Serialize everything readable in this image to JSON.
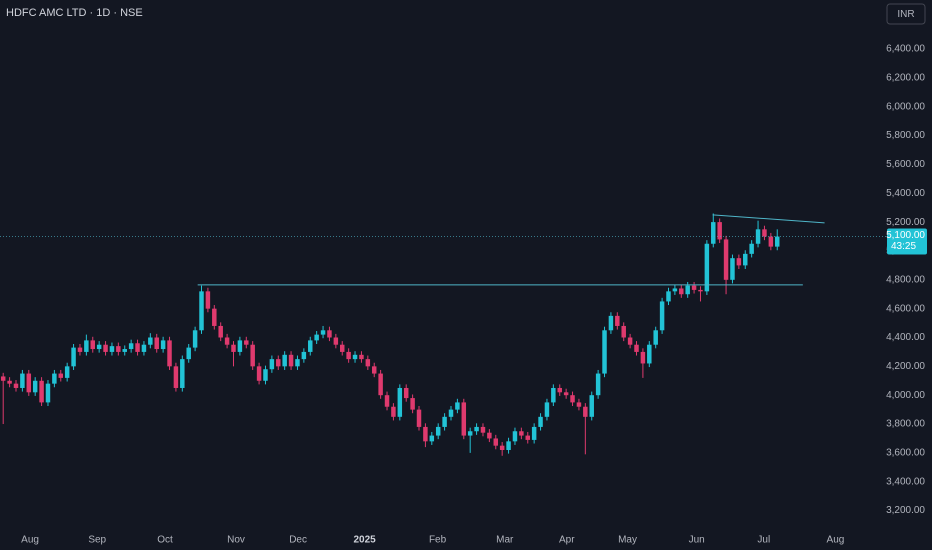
{
  "chart_data": {
    "type": "candlestick",
    "title": "HDFC AMC LTD · 1D · NSE",
    "currency": "INR",
    "up_color": "#22c3d6",
    "down_color": "#df3a6e",
    "line_color": "#4fb6c9",
    "grid": false,
    "xlim": [
      -0.5,
      135.5
    ],
    "ylim": [
      3100,
      6740
    ],
    "xticks": [
      {
        "value": 4.2,
        "label": "Aug"
      },
      {
        "value": 14.7,
        "label": "Sep"
      },
      {
        "value": 25.3,
        "label": "Oct"
      },
      {
        "value": 36.4,
        "label": "Nov"
      },
      {
        "value": 46.1,
        "label": "Dec"
      },
      {
        "value": 56.5,
        "label": "2025"
      },
      {
        "value": 67.9,
        "label": "Feb"
      },
      {
        "value": 78.4,
        "label": "Mar"
      },
      {
        "value": 88.1,
        "label": "Apr"
      },
      {
        "value": 97.6,
        "label": "May"
      },
      {
        "value": 108.4,
        "label": "Jun"
      },
      {
        "value": 118.9,
        "label": "Jul"
      },
      {
        "value": 130.1,
        "label": "Aug"
      }
    ],
    "yticks": [
      {
        "value": 3200,
        "label": "3,200.00"
      },
      {
        "value": 3400,
        "label": "3,400.00"
      },
      {
        "value": 3600,
        "label": "3,600.00"
      },
      {
        "value": 3800,
        "label": "3,800.00"
      },
      {
        "value": 4000,
        "label": "4,000.00"
      },
      {
        "value": 4200,
        "label": "4,200.00"
      },
      {
        "value": 4400,
        "label": "4,400.00"
      },
      {
        "value": 4600,
        "label": "4,600.00"
      },
      {
        "value": 4800,
        "label": "4,800.00"
      },
      {
        "value": 5000,
        "label": "5,000.00"
      },
      {
        "value": 5200,
        "label": "5,200.00"
      },
      {
        "value": 5400,
        "label": "5,400.00"
      },
      {
        "value": 5600,
        "label": "5,600.00"
      },
      {
        "value": 5800,
        "label": "5,800.00"
      },
      {
        "value": 6000,
        "label": "6,000.00"
      },
      {
        "value": 6200,
        "label": "6,200.00"
      },
      {
        "value": 6400,
        "label": "6,400.00"
      }
    ],
    "last_price": {
      "value": 5100,
      "label": "5,100.00"
    },
    "countdown": "43:25",
    "trendlines": [
      {
        "x": [
          30.4,
          125
        ],
        "y": [
          4765,
          4765
        ]
      },
      {
        "x": [
          110.9,
          128.4
        ],
        "y": [
          5250,
          5195
        ]
      }
    ],
    "open": [
      4130,
      4100,
      4080,
      4050,
      4150,
      4020,
      4100,
      3950,
      4080,
      4150,
      4120,
      4200,
      4330,
      4300,
      4380,
      4320,
      4350,
      4300,
      4340,
      4300,
      4320,
      4360,
      4300,
      4350,
      4400,
      4320,
      4380,
      4200,
      4050,
      4250,
      4330,
      4450,
      4720,
      4600,
      4480,
      4400,
      4350,
      4300,
      4380,
      4350,
      4200,
      4100,
      4180,
      4250,
      4200,
      4280,
      4200,
      4250,
      4300,
      4380,
      4420,
      4450,
      4400,
      4350,
      4300,
      4250,
      4280,
      4250,
      4200,
      4150,
      4000,
      3920,
      3850,
      4050,
      3980,
      3900,
      3780,
      3680,
      3720,
      3780,
      3850,
      3900,
      3950,
      3720,
      3750,
      3780,
      3740,
      3700,
      3650,
      3620,
      3680,
      3750,
      3720,
      3690,
      3780,
      3850,
      3950,
      4050,
      4020,
      4000,
      3950,
      3920,
      3850,
      4000,
      4150,
      4450,
      4550,
      4480,
      4400,
      4350,
      4300,
      4220,
      4350,
      4450,
      4650,
      4720,
      4740,
      4700,
      4760,
      4730,
      4720,
      5050,
      5200,
      5080,
      4800,
      4950,
      4900,
      4980,
      5050,
      5150,
      5100,
      5030
    ],
    "high": [
      4155,
      4125,
      4105,
      4175,
      4175,
      4125,
      4125,
      4105,
      4175,
      4175,
      4225,
      4355,
      4355,
      4420,
      4405,
      4375,
      4375,
      4365,
      4365,
      4345,
      4385,
      4385,
      4375,
      4430,
      4425,
      4405,
      4405,
      4225,
      4275,
      4355,
      4475,
      4760,
      4745,
      4625,
      4505,
      4425,
      4375,
      4405,
      4405,
      4375,
      4225,
      4205,
      4275,
      4275,
      4305,
      4305,
      4275,
      4325,
      4405,
      4445,
      4480,
      4475,
      4425,
      4375,
      4325,
      4305,
      4305,
      4275,
      4225,
      4175,
      4025,
      3945,
      4075,
      4075,
      4005,
      3925,
      3805,
      3745,
      3805,
      3875,
      3925,
      3975,
      3975,
      3775,
      3805,
      3805,
      3765,
      3725,
      3675,
      3705,
      3775,
      3775,
      3745,
      3805,
      3875,
      3975,
      4075,
      4075,
      4045,
      4025,
      3975,
      3945,
      4025,
      4175,
      4475,
      4575,
      4575,
      4505,
      4425,
      4375,
      4325,
      4375,
      4475,
      4675,
      4745,
      4765,
      4765,
      4785,
      4785,
      4755,
      5075,
      5260,
      5225,
      5105,
      4975,
      4975,
      5005,
      5075,
      5210,
      5175,
      5125,
      5150
    ],
    "low": [
      3800,
      4055,
      4025,
      4025,
      3995,
      3995,
      3925,
      3925,
      4055,
      4095,
      4095,
      4175,
      4275,
      4275,
      4295,
      4295,
      4275,
      4275,
      4275,
      4275,
      4295,
      4275,
      4275,
      4325,
      4295,
      4295,
      4175,
      4025,
      4025,
      4225,
      4305,
      4425,
      4575,
      4455,
      4375,
      4325,
      4200,
      4275,
      4325,
      4175,
      4075,
      4075,
      4155,
      4175,
      4175,
      4175,
      4175,
      4225,
      4275,
      4355,
      4395,
      4375,
      4325,
      4275,
      4225,
      4225,
      4225,
      4175,
      4125,
      3975,
      3895,
      3825,
      3825,
      3955,
      3875,
      3755,
      3640,
      3655,
      3695,
      3755,
      3825,
      3875,
      3695,
      3600,
      3725,
      3715,
      3675,
      3625,
      3580,
      3595,
      3655,
      3695,
      3665,
      3665,
      3755,
      3825,
      3925,
      3995,
      3975,
      3925,
      3895,
      3590,
      3825,
      3975,
      4125,
      4425,
      4455,
      4375,
      4325,
      4275,
      4120,
      4195,
      4325,
      4425,
      4625,
      4695,
      4675,
      4675,
      4705,
      4650,
      4695,
      5025,
      5055,
      4700,
      4775,
      4875,
      4875,
      4955,
      5025,
      5075,
      5005,
      5005
    ],
    "close": [
      4100,
      4080,
      4050,
      4150,
      4020,
      4100,
      3950,
      4080,
      4150,
      4120,
      4200,
      4330,
      4300,
      4380,
      4320,
      4350,
      4300,
      4340,
      4300,
      4320,
      4360,
      4300,
      4350,
      4400,
      4320,
      4380,
      4200,
      4050,
      4250,
      4330,
      4450,
      4720,
      4600,
      4480,
      4400,
      4350,
      4300,
      4380,
      4350,
      4200,
      4100,
      4180,
      4250,
      4200,
      4280,
      4200,
      4250,
      4300,
      4380,
      4420,
      4450,
      4400,
      4350,
      4300,
      4250,
      4280,
      4250,
      4200,
      4150,
      4000,
      3920,
      3850,
      4050,
      3980,
      3900,
      3780,
      3680,
      3720,
      3780,
      3850,
      3900,
      3950,
      3720,
      3750,
      3780,
      3740,
      3700,
      3650,
      3620,
      3680,
      3750,
      3720,
      3690,
      3780,
      3850,
      3950,
      4050,
      4020,
      4000,
      3950,
      3920,
      3850,
      4000,
      4150,
      4450,
      4550,
      4480,
      4400,
      4350,
      4300,
      4220,
      4350,
      4450,
      4650,
      4720,
      4740,
      4700,
      4760,
      4730,
      4720,
      5050,
      5200,
      5080,
      4800,
      4950,
      4900,
      4980,
      5050,
      5150,
      5100,
      5030,
      5100
    ]
  }
}
